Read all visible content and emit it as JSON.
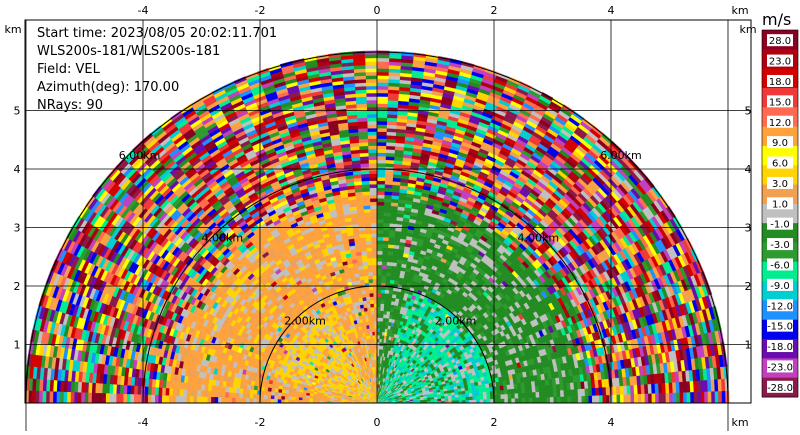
{
  "header": {
    "start_time": "Start time: 2023/08/05 20:02:11.701",
    "instrument": "WLS200s-181/WLS200s-181",
    "field": "Field: VEL",
    "azimuth": "Azimuth(deg): 170.00",
    "nrays": "NRays: 90"
  },
  "chart_data": {
    "type": "heatmap",
    "subtype": "radar RHI polar sector",
    "xlim": [
      -6.4,
      6.2
    ],
    "ylim": [
      0,
      5.8
    ],
    "x_unit_label": "km",
    "y_unit_label": "km",
    "x_ticks": [
      -4,
      -2,
      0,
      2,
      4
    ],
    "y_ticks": [
      1,
      2,
      3,
      4,
      5
    ],
    "range_rings": [
      {
        "radius_km": 2,
        "label": "2.00km"
      },
      {
        "radius_km": 4,
        "label": "4.00km"
      },
      {
        "radius_km": 6,
        "label": "6.00km"
      }
    ],
    "grid": true,
    "max_range_km": 6.0,
    "colorbar": {
      "unit": "m/s",
      "labels": [
        "28.0",
        "23.0",
        "18.0",
        "15.0",
        "12.0",
        "9.0",
        "6.0",
        "3.0",
        "1.0",
        "-1.0",
        "-3.0",
        "-6.0",
        "-9.0",
        "-12.0",
        "-15.0",
        "-18.0",
        "-23.0",
        "-28.0"
      ],
      "colors": [
        "#8b0022",
        "#b1000f",
        "#d40000",
        "#f03a3a",
        "#ff6a50",
        "#ffa23c",
        "#ffff00",
        "#ffd400",
        "#f0a050",
        "#c0c0c0",
        "#228b22",
        "#2e9b2e",
        "#00ee90",
        "#00ced1",
        "#1e90ff",
        "#0000ee",
        "#6a0dad",
        "#c040c0",
        "#8b1a4a"
      ]
    },
    "velocity_regions": [
      {
        "region": "near-range left (west)",
        "range_km": [
          0,
          3.5
        ],
        "dominant": [
          "1.0 to 3.0",
          "3.0 to 6.0"
        ]
      },
      {
        "region": "near-range right (east)",
        "range_km": [
          0,
          3.5
        ],
        "dominant": [
          "-1.0 to -3.0",
          "-6.0 to -9.0"
        ]
      },
      {
        "region": "far range",
        "range_km": [
          3.5,
          6.0
        ],
        "dominant": [
          "noisy, all values"
        ]
      }
    ]
  }
}
